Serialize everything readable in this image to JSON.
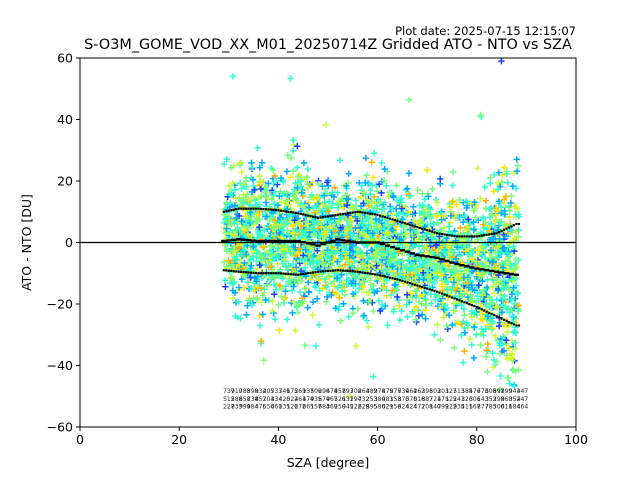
{
  "header": {
    "plot_date": "Plot date: 2025-07-15 12:15:07",
    "title": "S-O3M_GOME_VOD_XX_M01_20250714Z Gridded ATO - NTO vs SZA"
  },
  "chart_data": {
    "type": "scatter",
    "title": "S-O3M_GOME_VOD_XX_M01_20250714Z Gridded ATO - NTO vs SZA",
    "xlabel": "SZA [degree]",
    "ylabel": "ATO - NTO [DU]",
    "xlim": [
      0,
      100
    ],
    "ylim": [
      -60,
      60
    ],
    "x_ticks": [
      0,
      20,
      40,
      60,
      80,
      100
    ],
    "y_ticks": [
      -60,
      -40,
      -20,
      0,
      20,
      40,
      60
    ],
    "x_tick_labels": [
      "0",
      "20",
      "40",
      "60",
      "80",
      "100"
    ],
    "y_tick_labels": [
      "−60",
      "−40",
      "−20",
      "0",
      "20",
      "40",
      "60"
    ],
    "reference_line_y": 0,
    "scatter_x_range": [
      29,
      88.5
    ],
    "marker": "+",
    "colors": [
      "#1f3fff",
      "#00a8ff",
      "#31ffd0",
      "#7bff7b",
      "#c8ff3a",
      "#ffe600",
      "#ffb000"
    ],
    "mean_curve": {
      "x": [
        29,
        32,
        36,
        40,
        44,
        48,
        52,
        56,
        60,
        64,
        68,
        72,
        76,
        80,
        84,
        88
      ],
      "y": [
        0.5,
        1,
        0.5,
        0.5,
        0.5,
        -1,
        1,
        0,
        0,
        -2,
        -4,
        -5,
        -7,
        -8.5,
        -9.5,
        -10.5
      ]
    },
    "upper_std_curve": {
      "x": [
        29,
        32,
        36,
        40,
        44,
        48,
        52,
        56,
        60,
        64,
        68,
        72,
        76,
        80,
        84,
        88
      ],
      "y": [
        10,
        11,
        11,
        10.5,
        9.5,
        8,
        9,
        10,
        9,
        7,
        5,
        3,
        2,
        2,
        3,
        6
      ]
    },
    "lower_std_curve": {
      "x": [
        29,
        32,
        36,
        40,
        44,
        48,
        52,
        56,
        60,
        64,
        68,
        72,
        76,
        80,
        84,
        88
      ],
      "y": [
        -9,
        -9.5,
        -10,
        -10,
        -10.5,
        -9.5,
        -9,
        -9.5,
        -10.5,
        -12,
        -14,
        -16,
        -18.5,
        -21,
        -24,
        -27
      ]
    },
    "count_rows_y": [
      -49,
      -51.5,
      -54
    ]
  }
}
